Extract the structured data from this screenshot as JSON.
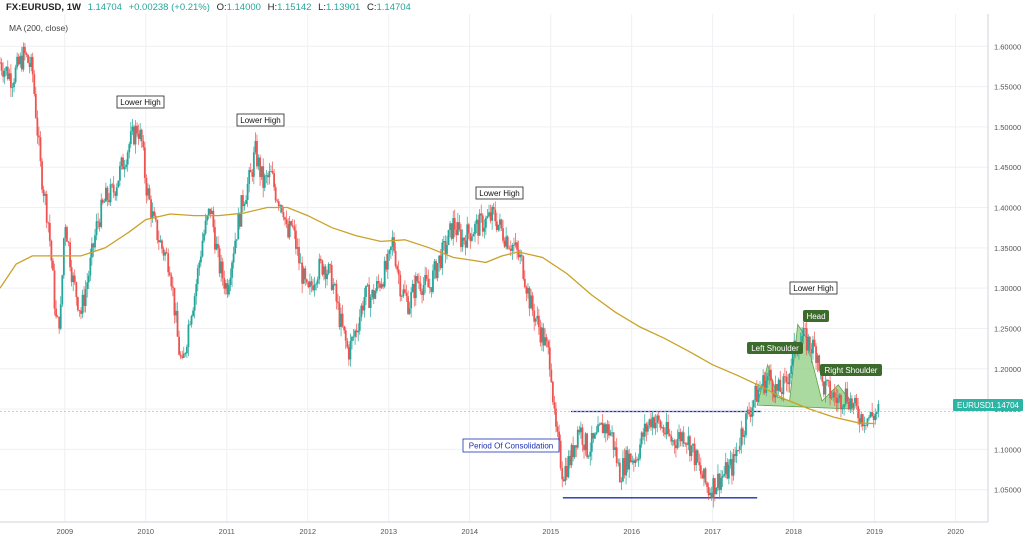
{
  "header": {
    "symbol": "FX:EURUSD, 1W",
    "last": "1.14704",
    "change": "+0.00238 (+0.21%)",
    "open_label": "O:",
    "open": "1.14000",
    "high_label": "H:",
    "high": "1.15142",
    "low_label": "L:",
    "low": "1.13901",
    "close_label": "C:",
    "close": "1.14704",
    "indicator": "MA (200, close)"
  },
  "price_tag": {
    "label": "EURUSD",
    "value": "1.14704"
  },
  "colors": {
    "up": "#26a69a",
    "down": "#ef5350",
    "ma": "#c9a227",
    "trendline": "#1c2fb5",
    "hs_fill": "#8fce80",
    "label_bg": "#3d6b2e",
    "tag_bg": "#2bb5a5",
    "grid": "#eef0f3",
    "axis_text": "#555555",
    "price_line": "#7fd3dc"
  },
  "annotations": {
    "lower_high_1": "Lower High",
    "lower_high_2": "Lower High",
    "lower_high_3": "Lower High",
    "lower_high_4": "Lower High",
    "left_shoulder": "Left Shoulder",
    "head": "Head",
    "right_shoulder": "Right Shoulder",
    "consolidation": "Period Of Consolidation"
  },
  "chart_data": {
    "type": "candlestick",
    "x_ticks": [
      "2009",
      "2010",
      "2011",
      "2012",
      "2013",
      "2014",
      "2015",
      "2016",
      "2017",
      "2018",
      "2019",
      "2020"
    ],
    "x_tick_years": [
      2009,
      2010,
      2011,
      2012,
      2013,
      2014,
      2015,
      2016,
      2017,
      2018,
      2019,
      2020
    ],
    "y_ticks": [
      "1.60000",
      "1.55000",
      "1.50000",
      "1.45000",
      "1.40000",
      "1.35000",
      "1.30000",
      "1.25000",
      "1.20000",
      "1.15000",
      "1.10000",
      "1.05000"
    ],
    "y_tick_values": [
      1.6,
      1.55,
      1.5,
      1.45,
      1.4,
      1.35,
      1.3,
      1.25,
      1.2,
      1.15,
      1.1,
      1.05
    ],
    "ylim": [
      1.01,
      1.64
    ],
    "xlim": [
      2008.2,
      2020.4
    ],
    "grid": true,
    "close_path": [
      [
        2008.2,
        1.58
      ],
      [
        2008.35,
        1.56
      ],
      [
        2008.5,
        1.59
      ],
      [
        2008.6,
        1.57
      ],
      [
        2008.7,
        1.45
      ],
      [
        2008.8,
        1.38
      ],
      [
        2008.9,
        1.25
      ],
      [
        2008.95,
        1.27
      ],
      [
        2009.0,
        1.39
      ],
      [
        2009.1,
        1.31
      ],
      [
        2009.2,
        1.27
      ],
      [
        2009.3,
        1.32
      ],
      [
        2009.4,
        1.38
      ],
      [
        2009.5,
        1.41
      ],
      [
        2009.6,
        1.42
      ],
      [
        2009.7,
        1.45
      ],
      [
        2009.8,
        1.48
      ],
      [
        2009.9,
        1.5
      ],
      [
        2009.95,
        1.48
      ],
      [
        2010.0,
        1.43
      ],
      [
        2010.1,
        1.38
      ],
      [
        2010.2,
        1.35
      ],
      [
        2010.3,
        1.33
      ],
      [
        2010.4,
        1.23
      ],
      [
        2010.45,
        1.2
      ],
      [
        2010.55,
        1.27
      ],
      [
        2010.6,
        1.29
      ],
      [
        2010.7,
        1.36
      ],
      [
        2010.8,
        1.4
      ],
      [
        2010.9,
        1.33
      ],
      [
        2011.0,
        1.3
      ],
      [
        2011.1,
        1.36
      ],
      [
        2011.2,
        1.41
      ],
      [
        2011.3,
        1.44
      ],
      [
        2011.35,
        1.47
      ],
      [
        2011.45,
        1.43
      ],
      [
        2011.55,
        1.44
      ],
      [
        2011.6,
        1.42
      ],
      [
        2011.7,
        1.4
      ],
      [
        2011.75,
        1.36
      ],
      [
        2011.8,
        1.38
      ],
      [
        2011.9,
        1.33
      ],
      [
        2012.0,
        1.29
      ],
      [
        2012.1,
        1.32
      ],
      [
        2012.2,
        1.33
      ],
      [
        2012.3,
        1.31
      ],
      [
        2012.4,
        1.26
      ],
      [
        2012.5,
        1.22
      ],
      [
        2012.6,
        1.25
      ],
      [
        2012.7,
        1.29
      ],
      [
        2012.8,
        1.29
      ],
      [
        2012.9,
        1.31
      ],
      [
        2013.0,
        1.33
      ],
      [
        2013.05,
        1.36
      ],
      [
        2013.15,
        1.3
      ],
      [
        2013.25,
        1.28
      ],
      [
        2013.35,
        1.31
      ],
      [
        2013.5,
        1.3
      ],
      [
        2013.6,
        1.33
      ],
      [
        2013.7,
        1.35
      ],
      [
        2013.8,
        1.38
      ],
      [
        2013.9,
        1.36
      ],
      [
        2014.0,
        1.37
      ],
      [
        2014.15,
        1.38
      ],
      [
        2014.3,
        1.39
      ],
      [
        2014.4,
        1.37
      ],
      [
        2014.55,
        1.35
      ],
      [
        2014.65,
        1.33
      ],
      [
        2014.75,
        1.28
      ],
      [
        2014.9,
        1.24
      ],
      [
        2015.0,
        1.21
      ],
      [
        2015.05,
        1.13
      ],
      [
        2015.15,
        1.07
      ],
      [
        2015.25,
        1.09
      ],
      [
        2015.35,
        1.13
      ],
      [
        2015.45,
        1.1
      ],
      [
        2015.55,
        1.11
      ],
      [
        2015.65,
        1.13
      ],
      [
        2015.75,
        1.12
      ],
      [
        2015.85,
        1.07
      ],
      [
        2015.95,
        1.09
      ],
      [
        2016.05,
        1.09
      ],
      [
        2016.15,
        1.12
      ],
      [
        2016.25,
        1.14
      ],
      [
        2016.35,
        1.13
      ],
      [
        2016.5,
        1.11
      ],
      [
        2016.65,
        1.12
      ],
      [
        2016.75,
        1.1
      ],
      [
        2016.85,
        1.07
      ],
      [
        2016.95,
        1.05
      ],
      [
        2017.05,
        1.06
      ],
      [
        2017.15,
        1.07
      ],
      [
        2017.25,
        1.08
      ],
      [
        2017.35,
        1.12
      ],
      [
        2017.5,
        1.16
      ],
      [
        2017.6,
        1.18
      ],
      [
        2017.7,
        1.19
      ],
      [
        2017.8,
        1.17
      ],
      [
        2017.9,
        1.18
      ],
      [
        2018.0,
        1.22
      ],
      [
        2018.1,
        1.24
      ],
      [
        2018.2,
        1.23
      ],
      [
        2018.3,
        1.22
      ],
      [
        2018.35,
        1.18
      ],
      [
        2018.45,
        1.17
      ],
      [
        2018.55,
        1.16
      ],
      [
        2018.65,
        1.17
      ],
      [
        2018.75,
        1.15
      ],
      [
        2018.85,
        1.14
      ],
      [
        2018.95,
        1.14
      ],
      [
        2019.05,
        1.147
      ]
    ],
    "ma_path": [
      [
        2008.2,
        1.3
      ],
      [
        2008.4,
        1.33
      ],
      [
        2008.6,
        1.34
      ],
      [
        2008.9,
        1.34
      ],
      [
        2009.2,
        1.34
      ],
      [
        2009.5,
        1.35
      ],
      [
        2009.8,
        1.37
      ],
      [
        2010.0,
        1.385
      ],
      [
        2010.3,
        1.392
      ],
      [
        2010.6,
        1.39
      ],
      [
        2010.9,
        1.39
      ],
      [
        2011.2,
        1.393
      ],
      [
        2011.5,
        1.4
      ],
      [
        2011.75,
        1.4
      ],
      [
        2012.0,
        1.39
      ],
      [
        2012.3,
        1.375
      ],
      [
        2012.6,
        1.365
      ],
      [
        2012.9,
        1.358
      ],
      [
        2013.2,
        1.36
      ],
      [
        2013.5,
        1.35
      ],
      [
        2013.8,
        1.338
      ],
      [
        2014.0,
        1.335
      ],
      [
        2014.2,
        1.332
      ],
      [
        2014.4,
        1.34
      ],
      [
        2014.6,
        1.345
      ],
      [
        2014.9,
        1.338
      ],
      [
        2015.2,
        1.318
      ],
      [
        2015.5,
        1.292
      ],
      [
        2015.8,
        1.27
      ],
      [
        2016.1,
        1.252
      ],
      [
        2016.4,
        1.238
      ],
      [
        2016.7,
        1.222
      ],
      [
        2017.0,
        1.205
      ],
      [
        2017.3,
        1.192
      ],
      [
        2017.6,
        1.178
      ],
      [
        2017.9,
        1.162
      ],
      [
        2018.2,
        1.15
      ],
      [
        2018.5,
        1.14
      ],
      [
        2018.8,
        1.133
      ],
      [
        2019.0,
        1.132
      ]
    ],
    "last_price": 1.14704
  }
}
